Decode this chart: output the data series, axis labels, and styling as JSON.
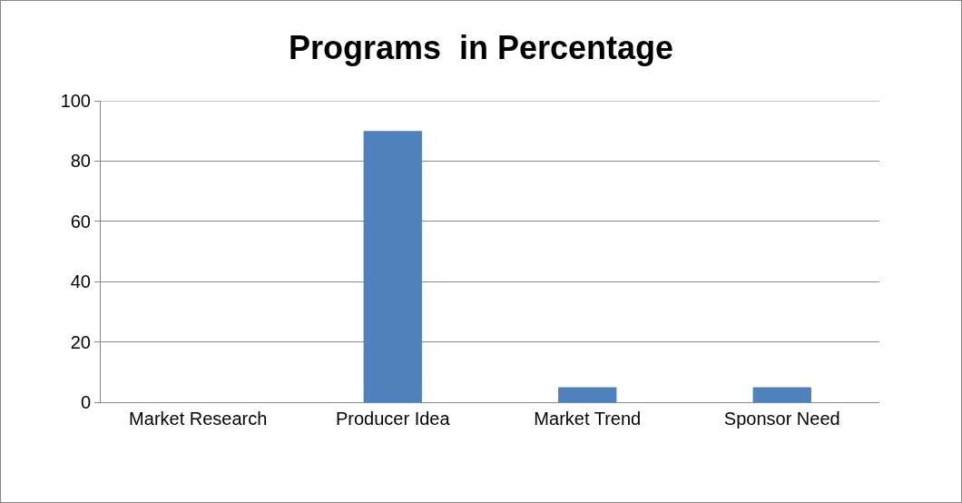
{
  "chart_data": {
    "type": "bar",
    "title": "Programs  in Percentage",
    "categories": [
      "Market Research",
      "Producer Idea",
      "Market Trend",
      "Sponsor Need"
    ],
    "values": [
      0,
      90,
      5,
      5
    ],
    "color": "#4f81bd",
    "ylim": [
      0,
      100
    ],
    "yticks": [
      0,
      20,
      40,
      60,
      80,
      100
    ],
    "grid": "y"
  }
}
